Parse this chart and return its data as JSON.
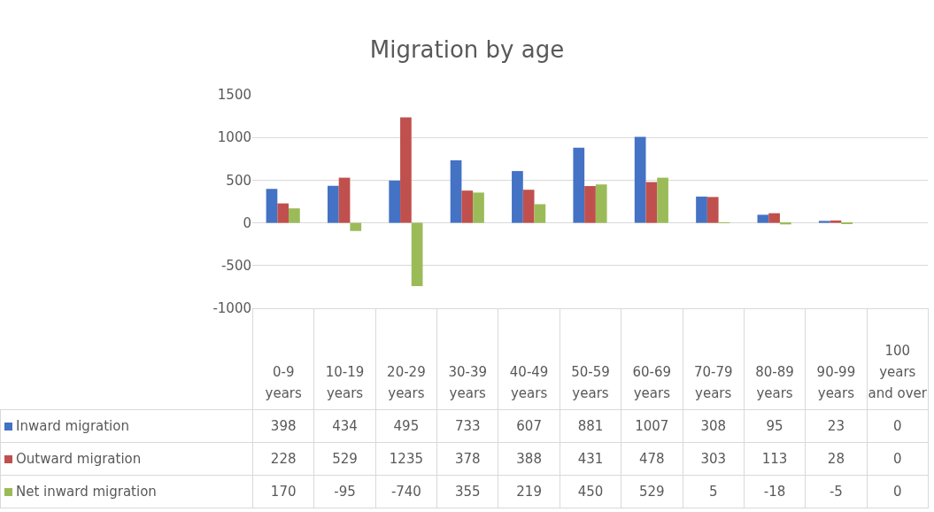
{
  "chart_data": {
    "type": "bar",
    "title": "Migration by age",
    "categories": [
      "0-9 years",
      "10-19 years",
      "20-29 years",
      "30-39 years",
      "40-49 years",
      "50-59 years",
      "60-69 years",
      "70-79 years",
      "80-89 years",
      "90-99 years",
      "100 years and over"
    ],
    "series": [
      {
        "name": "Inward migration",
        "color": "#4472c4",
        "values": [
          398,
          434,
          495,
          733,
          607,
          881,
          1007,
          308,
          95,
          23,
          0
        ]
      },
      {
        "name": "Outward migration",
        "color": "#c0504d",
        "values": [
          228,
          529,
          1235,
          378,
          388,
          431,
          478,
          303,
          113,
          28,
          0
        ]
      },
      {
        "name": "Net inward migration",
        "color": "#9bbb59",
        "values": [
          170,
          -95,
          -740,
          355,
          219,
          450,
          529,
          5,
          -18,
          -5,
          0
        ]
      }
    ],
    "ylim": [
      -1000,
      1500
    ],
    "yticks": [
      -1000,
      -500,
      0,
      500,
      1000,
      1500
    ],
    "grid": "y",
    "legend": "bottom",
    "data_labels": true,
    "tick_labels": "y"
  }
}
